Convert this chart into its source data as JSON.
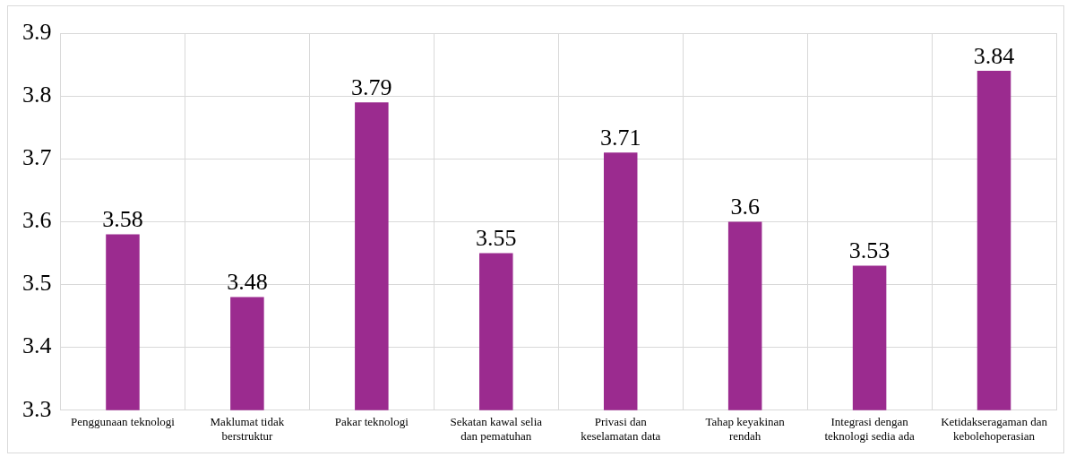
{
  "chart_data": {
    "type": "bar",
    "categories": [
      "Penggunaan teknologi",
      "Maklumat tidak berstruktur",
      "Pakar teknologi",
      "Sekatan kawal selia dan pematuhan",
      "Privasi dan keselamatan data",
      "Tahap keyakinan rendah",
      "Integrasi dengan teknologi sedia ada",
      "Ketidakseragaman dan kebolehoperasian"
    ],
    "values": [
      3.58,
      3.48,
      3.79,
      3.55,
      3.71,
      3.6,
      3.53,
      3.84
    ],
    "color": "#9b2b8f",
    "ylim": [
      3.3,
      3.9
    ],
    "yticks": [
      3.3,
      3.4,
      3.5,
      3.6,
      3.7,
      3.8,
      3.9
    ],
    "grid": true,
    "data_labels": true,
    "legend": false
  }
}
